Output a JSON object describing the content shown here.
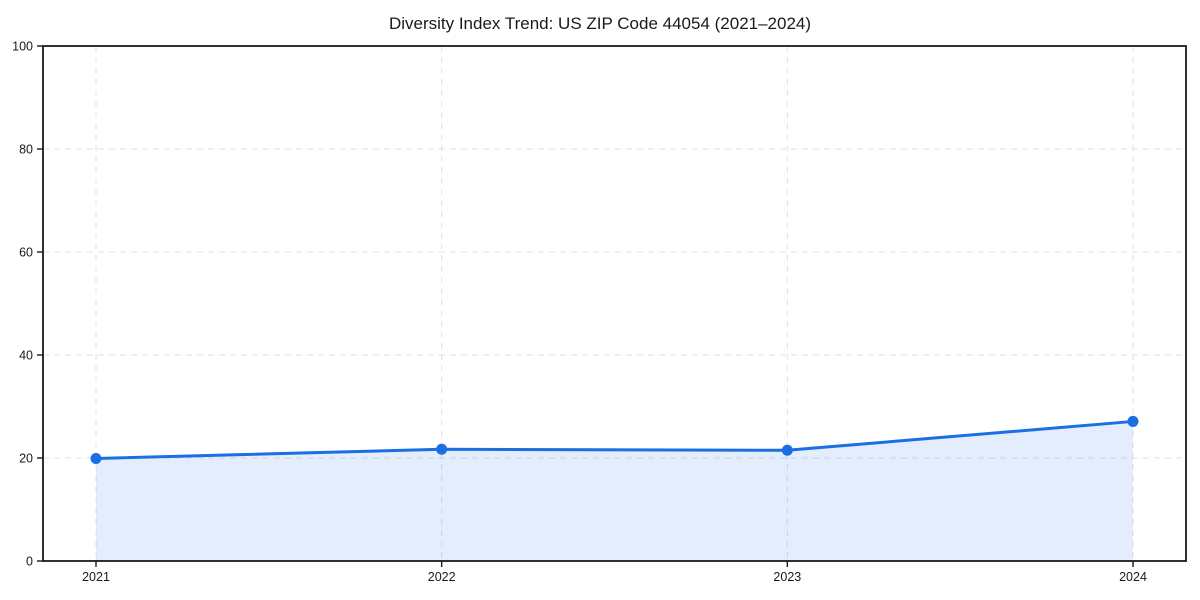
{
  "chart_data": {
    "type": "line",
    "title": "Diversity Index Trend: US ZIP Code 44054 (2021–2024)",
    "x": [
      "2021",
      "2022",
      "2023",
      "2024"
    ],
    "series": [
      {
        "name": "Diversity Index",
        "values": [
          19.9,
          21.7,
          21.5,
          27.1
        ]
      }
    ],
    "xlabel": "",
    "ylabel": "",
    "ylim": [
      0,
      100
    ],
    "yticks": [
      0,
      20,
      40,
      60,
      80,
      100
    ],
    "grid": true,
    "grid_style": "dashed",
    "legend": false,
    "marker": "circle",
    "area_fill": true,
    "colors": {
      "line": "#1b6ee3",
      "marker": "#1b6ee3",
      "area": "rgba(27,110,227,0.12)",
      "grid": "#e2e2e2",
      "spine": "#1a1a1a",
      "text": "#1a1a1a",
      "background": "#ffffff"
    }
  }
}
